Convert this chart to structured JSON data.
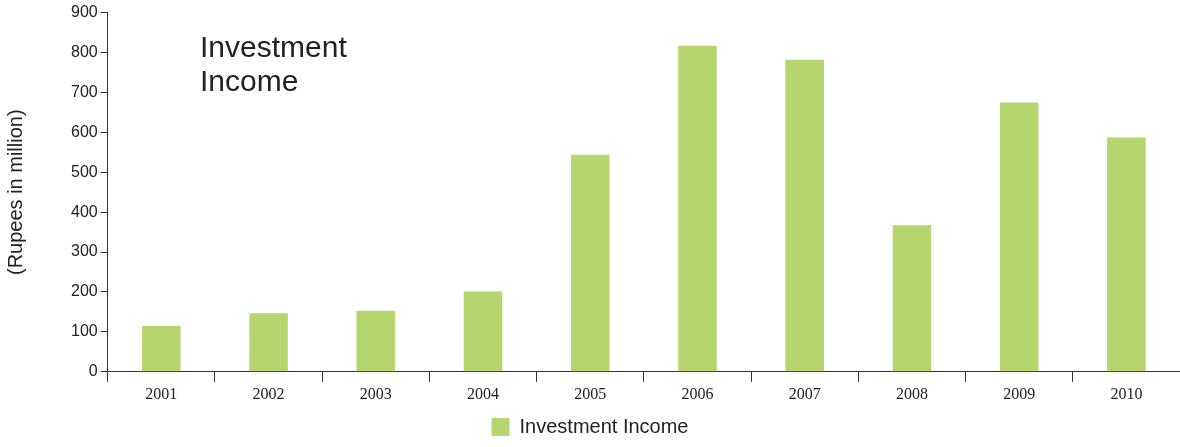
{
  "chart_data": {
    "type": "bar",
    "title": "Investment Income",
    "ylabel": "(Rupees in million)",
    "categories": [
      "2001",
      "2002",
      "2003",
      "2004",
      "2005",
      "2006",
      "2007",
      "2008",
      "2009",
      "2010"
    ],
    "series": [
      {
        "name": "Investment Income",
        "color": "#b5d56f",
        "values": [
          115,
          147,
          153,
          201,
          544,
          817,
          782,
          367,
          675,
          587
        ]
      }
    ],
    "ylim": [
      0,
      900
    ],
    "yticks": [
      0,
      100,
      200,
      300,
      400,
      500,
      600,
      700,
      800,
      900
    ],
    "grid": false,
    "legend": "bottom"
  }
}
